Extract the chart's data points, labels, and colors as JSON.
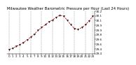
{
  "title": "Milwaukee Weather Barometric Pressure per Hour (Last 24 Hours)",
  "x_values": [
    0,
    1,
    2,
    3,
    4,
    5,
    6,
    7,
    8,
    9,
    10,
    11,
    12,
    13,
    14,
    15,
    16,
    17,
    18,
    19,
    20,
    21,
    22,
    23
  ],
  "y_values": [
    29.44,
    29.46,
    29.5,
    29.54,
    29.58,
    29.64,
    29.7,
    29.76,
    29.84,
    29.9,
    29.96,
    30.02,
    30.06,
    30.12,
    30.16,
    30.14,
    30.06,
    29.96,
    29.88,
    29.86,
    29.9,
    29.96,
    30.04,
    30.14
  ],
  "line_color": "#cc0000",
  "marker_color": "#111111",
  "bg_color": "#ffffff",
  "grid_color": "#999999",
  "title_color": "#000000",
  "title_fontsize": 3.8,
  "tick_fontsize": 3.0,
  "ylim_min": 29.35,
  "ylim_max": 30.25,
  "ytick_step": 0.1,
  "grid_x_positions": [
    0,
    3,
    6,
    9,
    12,
    15,
    18,
    21,
    23
  ]
}
